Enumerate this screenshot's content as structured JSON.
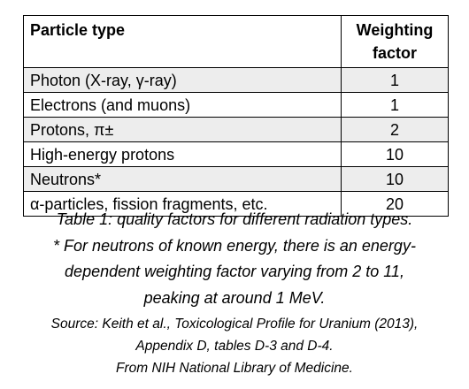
{
  "table": {
    "headers": {
      "particle_type": "Particle type",
      "weighting_factor_line1": "Weighting",
      "weighting_factor_line2": "factor"
    },
    "rows": [
      {
        "particle": "Photon (X-ray, γ-ray)",
        "factor": "1"
      },
      {
        "particle": "Electrons (and muons)",
        "factor": "1"
      },
      {
        "particle": "Protons, π±",
        "factor": "2"
      },
      {
        "particle": "High-energy protons",
        "factor": "10"
      },
      {
        "particle": "Neutrons*",
        "factor": "10"
      },
      {
        "particle": "α-particles, fission fragments, etc.",
        "factor": "20"
      }
    ]
  },
  "caption": {
    "lines": [
      "Table 1: quality factors for different radiation types.",
      "* For neutrons of known energy, there is an energy-",
      "dependent weighting factor varying from 2 to 11,",
      "peaking at around 1 MeV."
    ]
  },
  "source": {
    "lines": [
      "Source: Keith et al., Toxicological Profile for Uranium (2013),",
      "Appendix D, tables D-3 and D-4.",
      "From NIH National Library of Medicine."
    ]
  },
  "colors": {
    "row_shade": "#ededed",
    "border": "#000000"
  }
}
